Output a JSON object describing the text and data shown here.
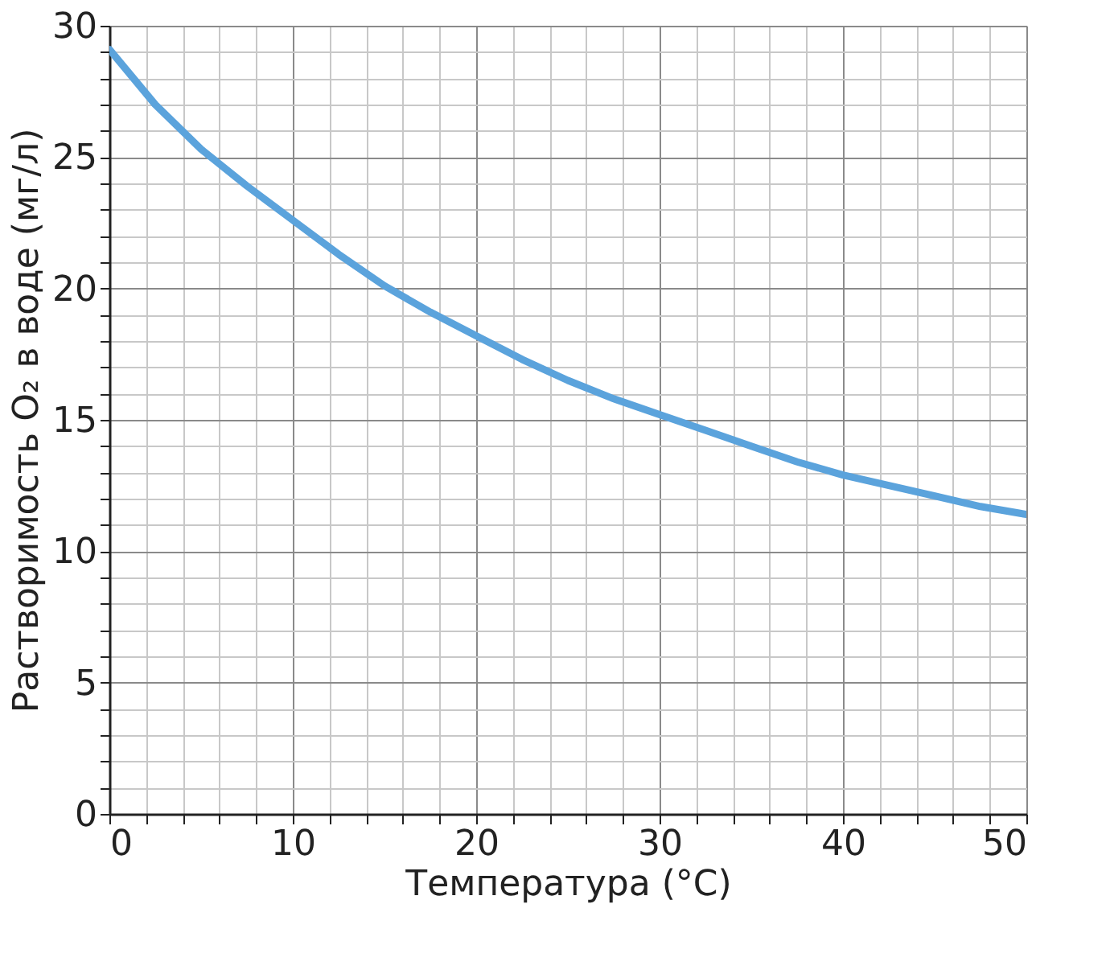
{
  "chart_data": {
    "type": "line",
    "xlabel": "Температура (°C)",
    "ylabel": "Растворимость O₂ в воде (мг/л)",
    "x": [
      0,
      2.5,
      5,
      7.5,
      10,
      12.5,
      15,
      17.5,
      20,
      22.5,
      25,
      27.5,
      30,
      32.5,
      35,
      37.5,
      40,
      42.5,
      45,
      47.5,
      50
    ],
    "series": [
      {
        "color": "#5ba3dc",
        "values": [
          29.1,
          27.0,
          25.3,
          23.9,
          22.6,
          21.3,
          20.1,
          19.1,
          18.2,
          17.3,
          16.5,
          15.8,
          15.2,
          14.6,
          14.0,
          13.4,
          12.9,
          12.5,
          12.1,
          11.7,
          11.4
        ]
      }
    ],
    "xlim": [
      0,
      50
    ],
    "ylim": [
      0,
      30
    ],
    "xticks": [
      0,
      {
        "value": 2,
        "label": null
      },
      {
        "value": 4,
        "label": null
      },
      {
        "value": 6,
        "label": null
      },
      {
        "value": 8,
        "label": null
      },
      10,
      {
        "value": 12,
        "label": null
      },
      {
        "value": 14,
        "label": null
      },
      {
        "value": 16,
        "label": null
      },
      {
        "value": 18,
        "label": null
      },
      20,
      {
        "value": 22,
        "label": null
      },
      {
        "value": 24,
        "label": null
      },
      {
        "value": 26,
        "label": null
      },
      {
        "value": 28,
        "label": null
      },
      30,
      {
        "value": 32,
        "label": null
      },
      {
        "value": 34,
        "label": null
      },
      {
        "value": 36,
        "label": null
      },
      {
        "value": 38,
        "label": null
      },
      40,
      {
        "value": 42,
        "label": null
      },
      {
        "value": 44,
        "label": null
      },
      {
        "value": 46,
        "label": null
      },
      {
        "value": 48,
        "label": null
      },
      50
    ],
    "yticks": [
      0,
      {
        "value": 1,
        "label": null
      },
      {
        "value": 2,
        "label": null
      },
      {
        "value": 3,
        "label": null
      },
      {
        "value": 4,
        "label": null
      },
      5,
      {
        "value": 6,
        "label": null
      },
      {
        "value": 7,
        "label": null
      },
      {
        "value": 8,
        "label": null
      },
      {
        "value": 9,
        "label": null
      },
      10,
      {
        "value": 11,
        "label": null
      },
      {
        "value": 12,
        "label": null
      },
      {
        "value": 13,
        "label": null
      },
      {
        "value": 14,
        "label": null
      },
      15,
      {
        "value": 16,
        "label": null
      },
      {
        "value": 17,
        "label": null
      },
      {
        "value": 18,
        "label": null
      },
      {
        "value": 19,
        "label": null
      },
      20,
      {
        "value": 21,
        "label": null
      },
      {
        "value": 22,
        "label": null
      },
      {
        "value": 23,
        "label": null
      },
      {
        "value": 24,
        "label": null
      },
      25,
      {
        "value": 26,
        "label": null
      },
      {
        "value": 27,
        "label": null
      },
      {
        "value": 28,
        "label": null
      },
      {
        "value": 29,
        "label": null
      },
      30
    ],
    "grid": true,
    "marker": "none",
    "line_style": "solid"
  }
}
